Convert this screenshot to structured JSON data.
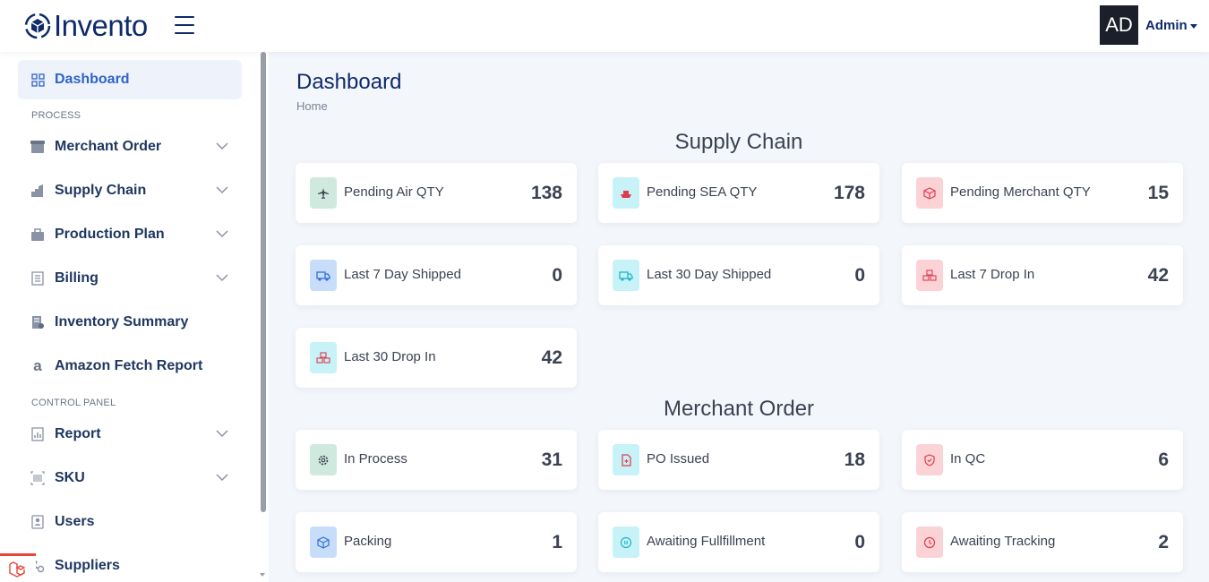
{
  "header": {
    "brand": "Invento",
    "avatar_initials": "AD",
    "user_menu": "Admin"
  },
  "sidebar": {
    "dashboard": "Dashboard",
    "section_process": "PROCESS",
    "merchant_order": "Merchant Order",
    "supply_chain": "Supply Chain",
    "production_plan": "Production Plan",
    "billing": "Billing",
    "inventory_summary": "Inventory Summary",
    "amazon_fetch_report": "Amazon Fetch Report",
    "section_control": "CONTROL PANEL",
    "report": "Report",
    "sku": "SKU",
    "users": "Users",
    "suppliers": "Suppliers"
  },
  "main": {
    "title": "Dashboard",
    "breadcrumb": "Home",
    "supply_chain": {
      "title": "Supply Chain",
      "cards": [
        {
          "label": "Pending Air QTY",
          "value": "138",
          "icon": "plane-icon",
          "color": "#4f9a7f"
        },
        {
          "label": "Pending SEA QTY",
          "value": "178",
          "icon": "ship-icon",
          "color": "#e23a4b"
        },
        {
          "label": "Pending Merchant QTY",
          "value": "15",
          "icon": "box-icon",
          "color": "#e23a4b"
        },
        {
          "label": "Last 7 Day Shipped",
          "value": "0",
          "icon": "truck-icon",
          "color": "#2f6fd6"
        },
        {
          "label": "Last 30 Day Shipped",
          "value": "0",
          "icon": "truck-icon",
          "color": "#1fb5cb"
        },
        {
          "label": "Last 7 Drop In",
          "value": "42",
          "icon": "boxes-icon",
          "color": "#e23a4b"
        },
        {
          "label": "Last 30 Drop In",
          "value": "42",
          "icon": "boxes-icon",
          "color": "#e23a4b"
        }
      ]
    },
    "merchant_order": {
      "title": "Merchant Order",
      "cards": [
        {
          "label": "In Process",
          "value": "31",
          "icon": "gear-icon",
          "color": "#3b4253"
        },
        {
          "label": "PO Issued",
          "value": "18",
          "icon": "file-icon",
          "color": "#e23a4b"
        },
        {
          "label": "In QC",
          "value": "6",
          "icon": "shield-icon",
          "color": "#e23a4b"
        },
        {
          "label": "Packing",
          "value": "1",
          "icon": "package-icon",
          "color": "#2f6fd6"
        },
        {
          "label": "Awaiting Fullfillment",
          "value": "0",
          "icon": "pause-icon",
          "color": "#1fb5cb"
        },
        {
          "label": "Awaiting Tracking",
          "value": "2",
          "icon": "clock-icon",
          "color": "#e23a4b"
        }
      ]
    }
  }
}
